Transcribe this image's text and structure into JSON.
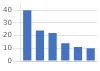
{
  "chart_data": {
    "type": "bar",
    "categories": [
      null,
      null,
      null,
      null,
      null,
      null
    ],
    "values": [
      40,
      24,
      22,
      14,
      11,
      10
    ],
    "color": "#4472c4",
    "ylim": [
      0,
      44
    ],
    "yticks": [
      0,
      10,
      20,
      30,
      40
    ],
    "grid": true,
    "tick_labels": "y"
  }
}
